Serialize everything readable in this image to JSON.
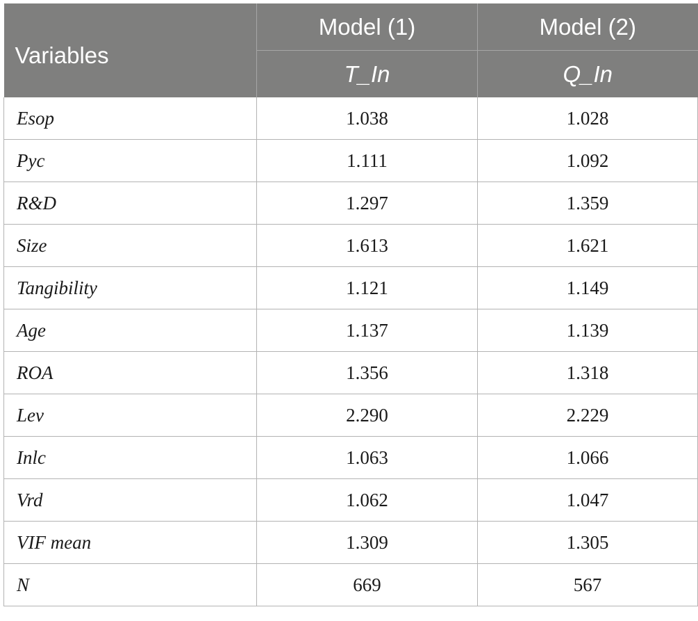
{
  "table": {
    "header": {
      "variables_label": "Variables",
      "model1_label": "Model (1)",
      "model2_label": "Model (2)",
      "model1_sub": "T_In",
      "model2_sub": "Q_In"
    },
    "header_bg_color": "#7f7f7e",
    "rows": [
      {
        "variable": "Esop",
        "model1": "1.038",
        "model2": "1.028"
      },
      {
        "variable": "Pyc",
        "model1": "1.111",
        "model2": "1.092"
      },
      {
        "variable": "R&D",
        "model1": "1.297",
        "model2": "1.359"
      },
      {
        "variable": "Size",
        "model1": "1.613",
        "model2": "1.621"
      },
      {
        "variable": "Tangibility",
        "model1": "1.121",
        "model2": "1.149"
      },
      {
        "variable": "Age",
        "model1": "1.137",
        "model2": "1.139"
      },
      {
        "variable": "ROA",
        "model1": "1.356",
        "model2": "1.318"
      },
      {
        "variable": "Lev",
        "model1": "2.290",
        "model2": "2.229"
      },
      {
        "variable": "Inlc",
        "model1": "1.063",
        "model2": "1.066"
      },
      {
        "variable": "Vrd",
        "model1": "1.062",
        "model2": "1.047"
      },
      {
        "variable": "VIF mean",
        "model1": "1.309",
        "model2": "1.305"
      },
      {
        "variable": "N",
        "model1": "669",
        "model2": "567"
      }
    ]
  }
}
